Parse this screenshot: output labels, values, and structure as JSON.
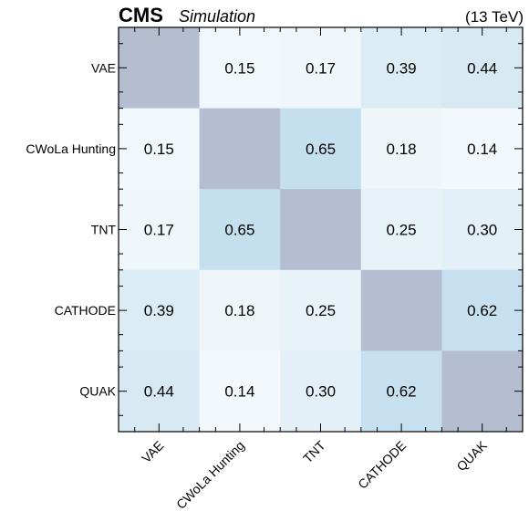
{
  "header": {
    "experiment": "CMS",
    "tag": "Simulation",
    "energy": "(13 TeV)"
  },
  "chart_data": {
    "type": "heatmap",
    "x_categories": [
      "VAE",
      "CWoLa Hunting",
      "TNT",
      "CATHODE",
      "QUAK"
    ],
    "y_categories": [
      "VAE",
      "CWoLa Hunting",
      "TNT",
      "CATHODE",
      "QUAK"
    ],
    "values": [
      [
        null,
        0.15,
        0.17,
        0.39,
        0.44
      ],
      [
        0.15,
        null,
        0.65,
        0.18,
        0.14
      ],
      [
        0.17,
        0.65,
        null,
        0.25,
        0.3
      ],
      [
        0.39,
        0.18,
        0.25,
        null,
        0.62
      ],
      [
        0.44,
        0.14,
        0.3,
        0.62,
        null
      ]
    ],
    "diagonal_color": "#b4bed0",
    "color_low": "#ffffff",
    "color_high": "#c4dfee"
  }
}
